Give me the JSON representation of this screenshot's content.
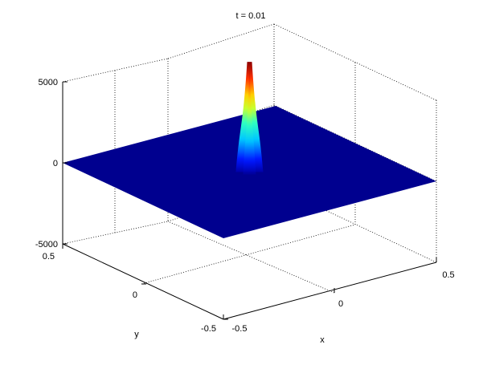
{
  "chart_data": {
    "type": "surface",
    "title": "t = 0.01",
    "xlabel": "x",
    "ylabel": "y",
    "zlabel": "",
    "xlim": [
      -0.5,
      0.5
    ],
    "ylim": [
      -0.5,
      0.5
    ],
    "zlim": [
      -5000,
      5000
    ],
    "x_ticks": [
      "-0.5",
      "0",
      "0.5"
    ],
    "y_ticks": [
      "-0.5",
      "0",
      "0.5"
    ],
    "z_ticks": [
      "-5000",
      "0",
      "5000"
    ],
    "grid": true,
    "colormap": "jet",
    "surface": {
      "description": "Flat sheet at z = 0 with a narrow peak",
      "base_value": 0,
      "peak": {
        "x": 0.0,
        "y": 0.0,
        "z": 6800
      }
    },
    "colors": {
      "base": "#00008f",
      "peak": "#7f0000"
    }
  }
}
